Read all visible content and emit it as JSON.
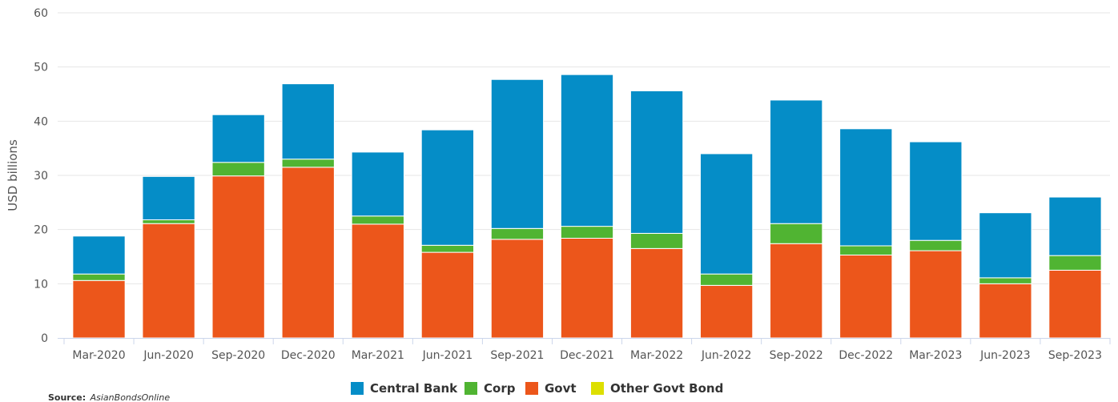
{
  "chart_data": {
    "type": "bar",
    "stacked": true,
    "title": "",
    "xlabel": "",
    "ylabel": "USD billions",
    "ylim": [
      0,
      60
    ],
    "yticks": [
      0,
      10,
      20,
      30,
      40,
      50,
      60
    ],
    "grid": true,
    "legend_position": "bottom-center",
    "categories": [
      "Mar-2020",
      "Jun-2020",
      "Sep-2020",
      "Dec-2020",
      "Mar-2021",
      "Jun-2021",
      "Sep-2021",
      "Dec-2021",
      "Mar-2022",
      "Jun-2022",
      "Sep-2022",
      "Dec-2022",
      "Mar-2023",
      "Jun-2023",
      "Sep-2023"
    ],
    "series": [
      {
        "name": "Govt",
        "color": "#ec561b",
        "values": [
          10.6,
          21.1,
          29.9,
          31.5,
          21.0,
          15.8,
          18.2,
          18.4,
          16.5,
          9.7,
          17.4,
          15.3,
          16.1,
          10.0,
          12.5
        ]
      },
      {
        "name": "Corp",
        "color": "#50b432",
        "values": [
          1.2,
          0.7,
          2.5,
          1.5,
          1.5,
          1.3,
          2.0,
          2.2,
          2.8,
          2.1,
          3.7,
          1.7,
          1.9,
          1.1,
          2.7
        ]
      },
      {
        "name": "Other Govt Bond",
        "color": "#dddf00",
        "values": [
          0,
          0,
          0,
          0,
          0,
          0,
          0,
          0,
          0,
          0,
          0,
          0,
          0,
          0,
          0
        ]
      },
      {
        "name": "Central Bank",
        "color": "#058dc7",
        "values": [
          7.0,
          8.0,
          8.8,
          13.9,
          11.8,
          21.3,
          27.5,
          28.0,
          26.3,
          22.2,
          22.8,
          21.6,
          18.2,
          12.0,
          10.8
        ]
      }
    ],
    "legend_order": [
      "Central Bank",
      "Corp",
      "Govt",
      "Other Govt Bond"
    ],
    "source_label": "Source:",
    "source_name": "AsianBondsOnline"
  }
}
